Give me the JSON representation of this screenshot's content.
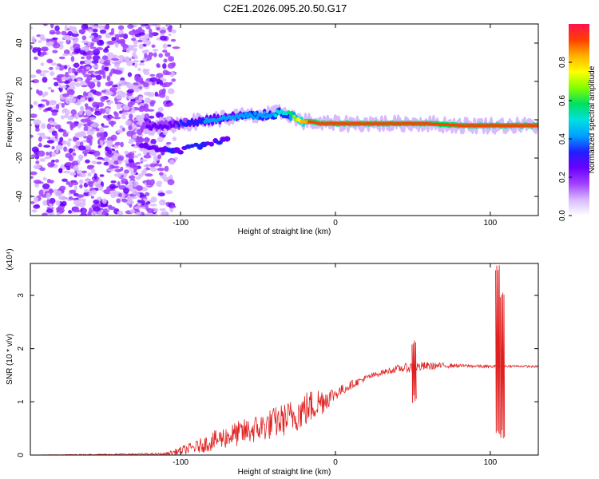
{
  "title": "C2E1.2026.095.20.50.G17",
  "colors": {
    "snr_line": "#e02020",
    "frame": "#000000",
    "background": "#ffffff"
  },
  "colorbar": {
    "label": "Normalized spectral amplitude",
    "range": [
      0,
      1
    ],
    "ticks": [
      0.0,
      0.2,
      0.4,
      0.6,
      0.8
    ],
    "tick_labels": [
      "0.0",
      "0.2",
      "0.4",
      "0.6",
      "0.8"
    ],
    "stops": [
      "#ffffff",
      "#d8b8ff",
      "#a040ff",
      "#6a00ff",
      "#2020ff",
      "#00a0ff",
      "#00e0e0",
      "#00e060",
      "#80ff00",
      "#ffff00",
      "#ffb000",
      "#ff4000",
      "#ff1050"
    ]
  },
  "chart_data": [
    {
      "type": "heatmap",
      "title": "C2E1.2026.095.20.50.G17",
      "xlabel": "Height of straight line (km)",
      "ylabel": "Frequency (Hz)",
      "xlim": [
        -197,
        131
      ],
      "ylim": [
        -50,
        50
      ],
      "x_ticks": [
        -100,
        0,
        100
      ],
      "x_tick_labels": [
        "-100",
        "0",
        "100"
      ],
      "y_ticks": [
        -40,
        -20,
        0,
        20,
        40
      ],
      "y_tick_labels": [
        "-40",
        "-20",
        "0",
        "20",
        "40"
      ],
      "ridge": {
        "x": [
          -125,
          -110,
          -100,
          -90,
          -80,
          -70,
          -60,
          -50,
          -40,
          -35,
          -30,
          -25,
          -20,
          -15,
          -10,
          0,
          20,
          40,
          60,
          80,
          100,
          110,
          120,
          131
        ],
        "frequency_hz": [
          -4,
          -3,
          -2,
          -1,
          0,
          1,
          2,
          2,
          3,
          4,
          3,
          0,
          -1,
          -1,
          -2,
          -2,
          -2,
          -2,
          -2,
          -3,
          -3,
          -3,
          -3,
          -3
        ],
        "amplitude": [
          0.2,
          0.25,
          0.3,
          0.35,
          0.4,
          0.42,
          0.45,
          0.45,
          0.45,
          0.5,
          0.55,
          0.7,
          0.85,
          0.9,
          0.95,
          0.95,
          0.95,
          0.92,
          0.93,
          0.95,
          0.9,
          0.92,
          0.95,
          0.95
        ]
      },
      "lower_branch": {
        "x": [
          -125,
          -110,
          -100,
          -90,
          -80,
          -70
        ],
        "frequency_hz": [
          -14,
          -16,
          -16,
          -14,
          -12,
          -10
        ]
      },
      "noise_region": {
        "x_range": [
          -197,
          -105
        ],
        "frequency_range": [
          -50,
          50
        ],
        "amplitude": 0.2
      }
    },
    {
      "type": "line",
      "xlabel": "Height of straight line (km)",
      "ylabel": "SNR (10 * v/v)",
      "y_scale_label": "(x10⁴)",
      "xlim": [
        -197,
        131
      ],
      "ylim": [
        0,
        3.6
      ],
      "x_ticks": [
        -100,
        0,
        100
      ],
      "x_tick_labels": [
        "-100",
        "0",
        "100"
      ],
      "y_ticks": [
        0,
        1,
        2,
        3
      ],
      "y_tick_labels": [
        "0",
        "1",
        "2",
        "3"
      ],
      "envelope": {
        "x": [
          -197,
          -110,
          -100,
          -90,
          -80,
          -70,
          -60,
          -50,
          -40,
          -30,
          -20,
          -10,
          0,
          10,
          20,
          30,
          40,
          50,
          60,
          70,
          80,
          90,
          100,
          110,
          120,
          131
        ],
        "snr_mean": [
          0.0,
          0.02,
          0.08,
          0.15,
          0.25,
          0.35,
          0.42,
          0.5,
          0.6,
          0.7,
          0.85,
          1.0,
          1.15,
          1.32,
          1.45,
          1.55,
          1.62,
          1.65,
          1.67,
          1.68,
          1.68,
          1.67,
          1.66,
          1.67,
          1.67,
          1.66
        ],
        "noise_amplitude": [
          0.0,
          0.02,
          0.08,
          0.12,
          0.18,
          0.22,
          0.25,
          0.27,
          0.3,
          0.32,
          0.35,
          0.3,
          0.12,
          0.08,
          0.06,
          0.05,
          0.07,
          0.1,
          0.08,
          0.05,
          0.03,
          0.03,
          0.03,
          0.02,
          0.02,
          0.02
        ]
      },
      "features": [
        {
          "x": 51,
          "snr": [
            0.95,
            2.2
          ]
        },
        {
          "x": 105,
          "snr": [
            0.3,
            3.6
          ]
        },
        {
          "x": 108,
          "snr": [
            0.3,
            3.1
          ]
        }
      ]
    }
  ]
}
